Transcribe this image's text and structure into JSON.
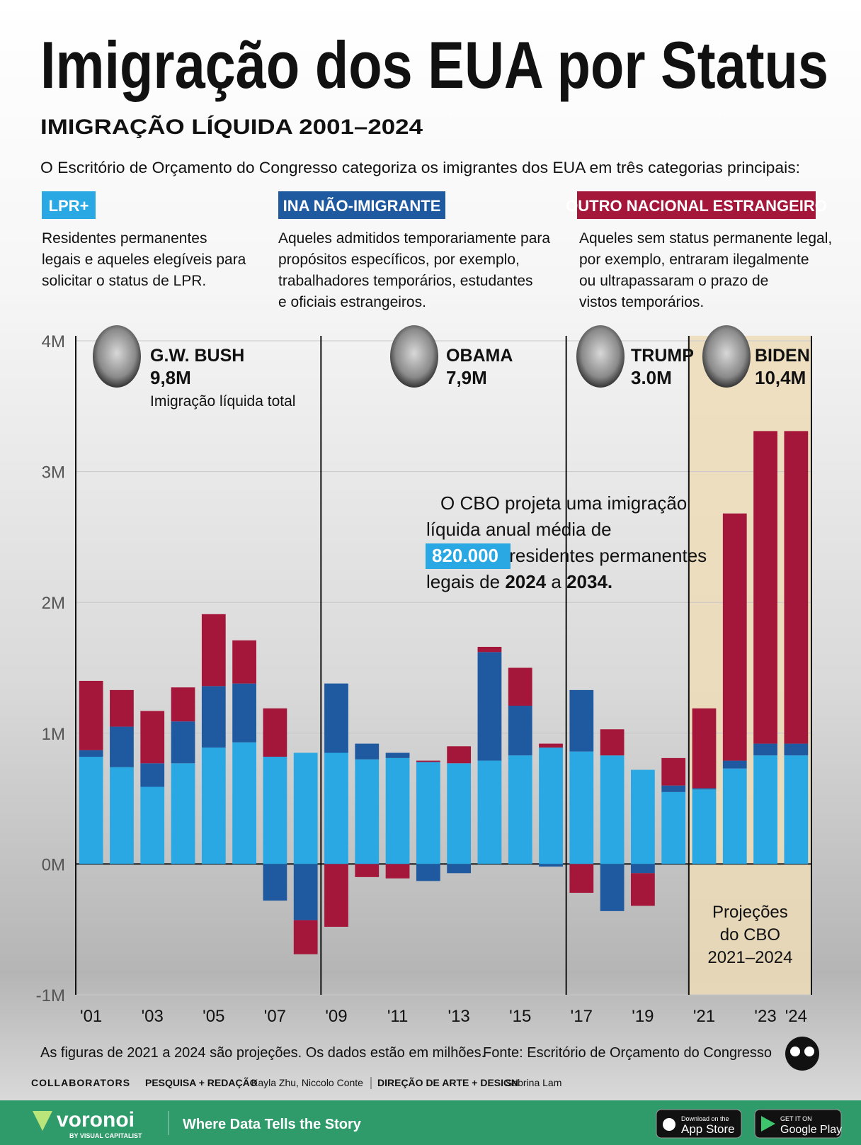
{
  "header": {
    "title": "Imigração dos EUA por Status",
    "subtitle": "IMIGRAÇÃO LÍQUIDA 2001–2024",
    "intro": "O Escritório de Orçamento do Congresso categoriza os imigrantes dos EUA em três categorias principais:"
  },
  "chart_data": {
    "type": "bar",
    "stacked": true,
    "categories": [
      "'01",
      null,
      "'03",
      null,
      "'05",
      null,
      "'07",
      null,
      "'09",
      null,
      "'11",
      null,
      "'13",
      null,
      "'15",
      null,
      "'17",
      null,
      "'19",
      null,
      "'21",
      null,
      "'23",
      "'24"
    ],
    "series": [
      {
        "name": "LPR+",
        "color": "#29a8e3",
        "description": [
          "Residentes permanentes",
          "legais e aqueles elegíveis para",
          "solicitar o status de LPR."
        ],
        "values": [
          0.82,
          0.74,
          0.59,
          0.77,
          0.89,
          0.93,
          0.82,
          0.85,
          0.85,
          0.8,
          0.81,
          0.78,
          0.77,
          0.79,
          0.83,
          0.89,
          0.86,
          0.83,
          0.72,
          0.55,
          0.57,
          0.73,
          0.83,
          0.83
        ]
      },
      {
        "name": "INA NÃO-IMIGRANTE",
        "color": "#1f5aa0",
        "description": [
          "Aqueles admitidos temporariamente para",
          "propósitos específicos, por exemplo,",
          "trabalhadores temporários, estudantes",
          "e oficiais estrangeiros."
        ],
        "values": [
          0.05,
          0.31,
          0.18,
          0.32,
          0.47,
          0.45,
          -0.28,
          -0.43,
          0.53,
          0.12,
          0.04,
          -0.13,
          -0.07,
          0.83,
          0.38,
          -0.02,
          0.47,
          -0.36,
          -0.07,
          0.05,
          0.01,
          0.06,
          0.09,
          0.09
        ]
      },
      {
        "name": "OUTRO NACIONAL ESTRANGEIRO",
        "color": "#a4173a",
        "description": [
          "Aqueles sem status permanente legal,",
          "por exemplo, entraram ilegalmente",
          "ou ultrapassaram o prazo de",
          "vistos temporários."
        ],
        "values": [
          0.53,
          0.28,
          0.4,
          0.26,
          0.55,
          0.33,
          0.37,
          -0.26,
          -0.48,
          -0.1,
          -0.11,
          0.01,
          0.13,
          0.04,
          0.29,
          0.03,
          -0.22,
          0.2,
          -0.25,
          0.21,
          0.61,
          1.89,
          2.39,
          2.39
        ]
      }
    ],
    "ylim": [
      -1,
      4
    ],
    "yticks": [
      {
        "value": -1,
        "label": "-1M"
      },
      {
        "value": 0,
        "label": "0M"
      },
      {
        "value": 1,
        "label": "1M"
      },
      {
        "value": 2,
        "label": "2M"
      },
      {
        "value": 3,
        "label": "3M"
      },
      {
        "value": 4,
        "label": "4M"
      }
    ],
    "grid": true,
    "presidents": [
      {
        "name": "G.W. BUSH",
        "total": "9,8M",
        "note": "Imigração líquida total"
      },
      {
        "name": "OBAMA",
        "total": "7,9M"
      },
      {
        "name": "TRUMP",
        "total": "3.0M"
      },
      {
        "name": "BIDEN",
        "total": "10,4M"
      }
    ],
    "callout": [
      [
        "O CBO projeta uma imigração"
      ],
      [
        "líquida anual média de"
      ],
      [
        "820.000",
        " residentes permanentes"
      ],
      [
        "legais de ",
        "2024",
        " a ",
        "2034."
      ]
    ],
    "projection_note": [
      "Projeções",
      "do CBO",
      "2021–2024"
    ]
  },
  "footer": {
    "note": "As figuras de 2021 a 2024 são projeções. Os dados estão em milhões.",
    "source": "Fonte: Escritório de Orçamento do Congresso",
    "collaborators": "COLLABORATORS",
    "research_label": "PESQUISA + REDAÇÃO",
    "research_names": "Kayla Zhu, Niccolo Conte",
    "art_label": "DIREÇÃO DE ARTE + DESIGN",
    "art_names": "Sabrina Lam",
    "brand": "voronoi",
    "brand_sub": "BY VISUAL CAPITALIST",
    "tagline": "Where Data Tells the Story",
    "appstore_small": "Download on the",
    "appstore": "App Store",
    "googleplay_small": "GET IT ON",
    "googleplay": "Google Play"
  }
}
